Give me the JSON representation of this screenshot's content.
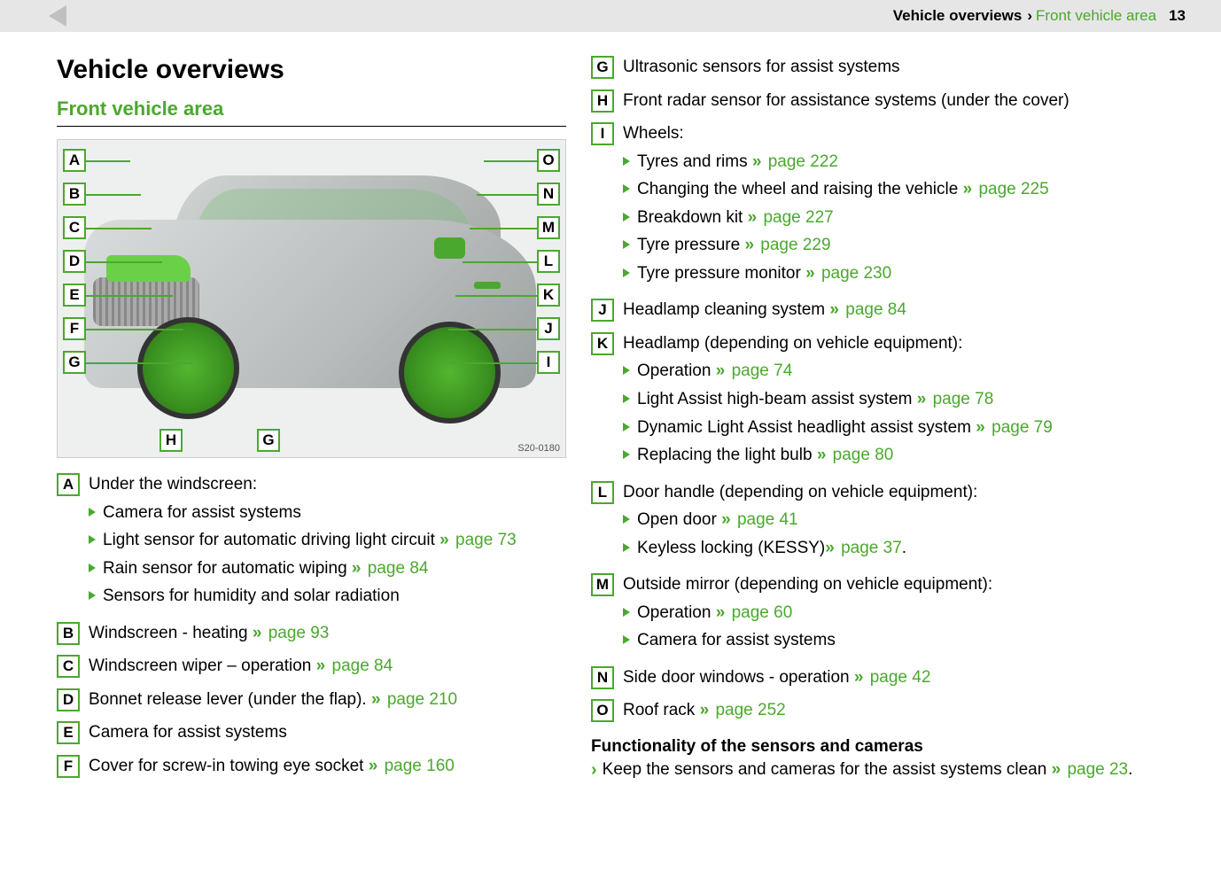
{
  "colors": {
    "accent": "#4ba82e",
    "text": "#000000",
    "header_bg": "#e6e6e6"
  },
  "header": {
    "crumb": "Vehicle overviews",
    "sep": "›",
    "sub": "Front vehicle area",
    "page": "13"
  },
  "section_title": "Vehicle overviews",
  "sub_title": "Front vehicle area",
  "figure_code": "S20-0180",
  "diagram": {
    "left_labels": [
      "A",
      "B",
      "C",
      "D",
      "E",
      "F",
      "G"
    ],
    "bottom_labels": [
      "H",
      "G"
    ],
    "right_labels": [
      "O",
      "N",
      "M",
      "L",
      "K",
      "J",
      "I"
    ]
  },
  "left_items": [
    {
      "letter": "A",
      "text": "Under the windscreen:",
      "sub": [
        {
          "t": "Camera for assist systems"
        },
        {
          "t": "Light sensor for automatic driving light circuit ",
          "ref": "page 73"
        },
        {
          "t": "Rain sensor for automatic wiping ",
          "ref": "page 84"
        },
        {
          "t": "Sensors for humidity and solar radiation"
        }
      ]
    },
    {
      "letter": "B",
      "text": "Windscreen - heating ",
      "ref": "page 93"
    },
    {
      "letter": "C",
      "text": "Windscreen wiper – operation ",
      "ref": "page 84"
    },
    {
      "letter": "D",
      "text": "Bonnet release lever (under the flap). ",
      "ref": "page 210"
    },
    {
      "letter": "E",
      "text": "Camera for assist systems"
    },
    {
      "letter": "F",
      "text": "Cover for screw-in towing eye socket ",
      "ref": "page 160"
    }
  ],
  "right_items": [
    {
      "letter": "G",
      "text": "Ultrasonic sensors for assist systems"
    },
    {
      "letter": "H",
      "text": "Front radar sensor for assistance systems (under the cover)"
    },
    {
      "letter": "I",
      "text": "Wheels:",
      "sub": [
        {
          "t": "Tyres and rims ",
          "ref": "page 222"
        },
        {
          "t": "Changing the wheel and raising the vehicle ",
          "ref": "page 225"
        },
        {
          "t": "Breakdown kit ",
          "ref": "page 227"
        },
        {
          "t": "Tyre pressure ",
          "ref": "page 229"
        },
        {
          "t": "Tyre pressure monitor ",
          "ref": "page 230"
        }
      ]
    },
    {
      "letter": "J",
      "text": "Headlamp cleaning system ",
      "ref": "page 84"
    },
    {
      "letter": "K",
      "text": "Headlamp (depending on vehicle equipment):",
      "sub": [
        {
          "t": "Operation ",
          "ref": "page 74"
        },
        {
          "t": "Light Assist high-beam assist system ",
          "ref": "page 78"
        },
        {
          "t": "Dynamic Light Assist headlight assist system ",
          "ref": "page 79"
        },
        {
          "t": "Replacing the light bulb ",
          "ref": "page 80"
        }
      ]
    },
    {
      "letter": "L",
      "text": "Door handle (depending on vehicle equipment):",
      "sub": [
        {
          "t": "Open door ",
          "ref": "page 41"
        },
        {
          "t": "Keyless locking (KESSY)",
          "ref": "page 37",
          "tail": "."
        }
      ]
    },
    {
      "letter": "M",
      "text": "Outside mirror (depending on vehicle equipment):",
      "sub": [
        {
          "t": "Operation ",
          "ref": "page 60"
        },
        {
          "t": "Camera for assist systems"
        }
      ]
    },
    {
      "letter": "N",
      "text": "Side door windows - operation ",
      "ref": "page 42"
    },
    {
      "letter": "O",
      "text": "Roof rack ",
      "ref": "page 252"
    }
  ],
  "note": {
    "heading": "Functionality of the sensors and cameras",
    "text": "Keep the sensors and cameras for the assist systems clean ",
    "ref": "page 23",
    "tail": "."
  }
}
